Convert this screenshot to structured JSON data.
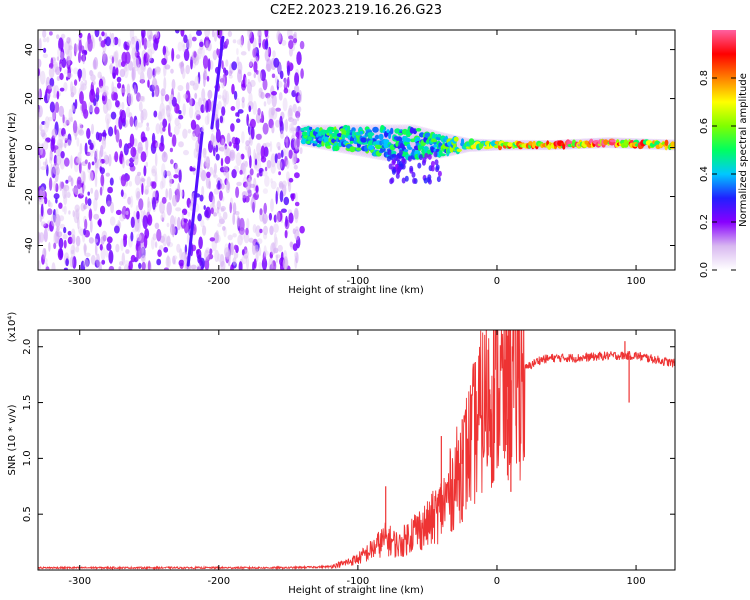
{
  "title": "C2E2.2023.219.16.26.G23",
  "chart_data": [
    {
      "type": "heatmap",
      "xlabel": "Height of straight line (km)",
      "ylabel": "Frequency (Hz)",
      "xlim": [
        -330,
        128
      ],
      "ylim": [
        -50,
        48
      ],
      "xticks": [
        -300,
        -200,
        -100,
        0,
        100
      ],
      "yticks": [
        -40,
        -20,
        0,
        20,
        40
      ],
      "colorbar": {
        "label": "Normalized spectral amplitude",
        "range": [
          0,
          1
        ],
        "ticks": [
          0.0,
          0.2,
          0.4,
          0.6,
          0.8
        ],
        "colormap": [
          "#ffffff",
          "#d8b8f0",
          "#8800ff",
          "#2020ff",
          "#00c8ff",
          "#00ff60",
          "#80ff00",
          "#ffff00",
          "#ff8000",
          "#ff0000",
          "#ff60a0"
        ]
      },
      "noise_region_x": [
        -330,
        -140
      ],
      "signal_track": [
        {
          "x": -140,
          "y": 5,
          "spread": 3,
          "amplitude": 0.45
        },
        {
          "x": -120,
          "y": 4,
          "spread": 4,
          "amplitude": 0.5
        },
        {
          "x": -100,
          "y": 3,
          "spread": 5,
          "amplitude": 0.5
        },
        {
          "x": -80,
          "y": 2,
          "spread": 6,
          "amplitude": 0.45
        },
        {
          "x": -60,
          "y": 2,
          "spread": 6,
          "amplitude": 0.45
        },
        {
          "x": -40,
          "y": 1,
          "spread": 4,
          "amplitude": 0.5
        },
        {
          "x": -20,
          "y": 1,
          "spread": 1.5,
          "amplitude": 0.6
        },
        {
          "x": 0,
          "y": 1,
          "spread": 1,
          "amplitude": 0.7
        },
        {
          "x": 40,
          "y": 1,
          "spread": 0.8,
          "amplitude": 0.85
        },
        {
          "x": 80,
          "y": 2,
          "spread": 1,
          "amplitude": 0.9
        },
        {
          "x": 128,
          "y": 1,
          "spread": 1,
          "amplitude": 0.7
        }
      ],
      "streaks": [
        {
          "x0": -222,
          "y0": -48,
          "x1": -212,
          "y1": 6
        },
        {
          "x0": -205,
          "y0": 8,
          "x1": -197,
          "y1": 45
        }
      ]
    },
    {
      "type": "line",
      "xlabel": "Height of straight line (km)",
      "ylabel": "SNR (10 * v/v)",
      "y_multiplier": "(x10⁴)",
      "xlim": [
        -330,
        128
      ],
      "ylim": [
        0,
        2.15
      ],
      "xticks": [
        -300,
        -200,
        -100,
        0,
        100
      ],
      "yticks": [
        0.5,
        1.0,
        1.5,
        2.0
      ],
      "series": [
        {
          "color": "#ee3333",
          "x": [
            -330,
            -300,
            -250,
            -200,
            -150,
            -120,
            -110,
            -100,
            -90,
            -80,
            -70,
            -60,
            -50,
            -40,
            -30,
            -20,
            -10,
            0,
            5,
            10,
            20,
            30,
            40,
            60,
            80,
            100,
            128
          ],
          "y": [
            0.02,
            0.02,
            0.02,
            0.02,
            0.02,
            0.03,
            0.06,
            0.1,
            0.18,
            0.28,
            0.22,
            0.35,
            0.4,
            0.55,
            0.8,
            1.1,
            1.45,
            1.7,
            1.55,
            1.7,
            1.8,
            1.88,
            1.9,
            1.9,
            1.92,
            1.92,
            1.85
          ]
        }
      ],
      "spikes": [
        {
          "x": -80,
          "y": 0.75
        },
        {
          "x": -40,
          "y": 1.2
        },
        {
          "x": -25,
          "y": 1.35
        },
        {
          "x": -12,
          "y": 1.85
        },
        {
          "x": -5,
          "y": 1.1
        },
        {
          "x": 8,
          "y": 2.1
        },
        {
          "x": 10,
          "y": 0.7
        },
        {
          "x": 92,
          "y": 2.05
        },
        {
          "x": 95,
          "y": 1.5
        }
      ]
    }
  ]
}
